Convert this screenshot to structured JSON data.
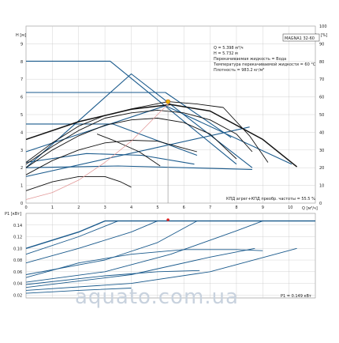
{
  "chart_data": [
    {
      "type": "line",
      "name": "pump-head-chart",
      "xlabel": "Q [м³/ч]",
      "ylabel_left": "H [м]",
      "ylabel_right": "eta [%]",
      "xlim": [
        0,
        11
      ],
      "ylim": [
        0,
        10
      ],
      "ylim_right": [
        0,
        100
      ],
      "x_ticks": [
        "0",
        "1",
        "2",
        "3",
        "4",
        "5",
        "6",
        "7",
        "8",
        "9",
        "10"
      ],
      "y_ticks": [
        "0",
        "1",
        "2",
        "3",
        "4",
        "5",
        "6",
        "7",
        "8",
        "9"
      ],
      "y_ticks_right": [
        "0",
        "10",
        "20",
        "30",
        "40",
        "50",
        "60",
        "70",
        "80",
        "90",
        "100"
      ],
      "grid": true,
      "model": "MAGNA1 32-60",
      "info_lines": [
        "Q = 5.398 м³/ч",
        "H = 5.732 м",
        "Перекачиваемая жидкость = Вода",
        "Температура перекачиваемой жидкости = 60 °C",
        "Плотность = 983.2 кг/м³"
      ],
      "efficiency_note": "КПД агрег+КПД преобр. частоты = 55.5 %",
      "operating_point": {
        "x": 5.398,
        "y": 5.732
      },
      "colors": {
        "curve": "#1a5a8c",
        "duty": "#111111",
        "efficiency": "#e39a9a",
        "point": "#e8b400",
        "grid": "#c8c8c8"
      },
      "series": [
        {
          "role": "constant-pressure",
          "values": [
            [
              0,
              8.02
            ],
            [
              3.2,
              8.02
            ],
            [
              8.0,
              2.2
            ]
          ]
        },
        {
          "role": "proportional-pressure",
          "values": [
            [
              0,
              6.25
            ],
            [
              5.3,
              6.25
            ],
            [
              7.8,
              3.7
            ]
          ]
        },
        {
          "role": "proportional-pressure",
          "values": [
            [
              0,
              4.47
            ],
            [
              3.3,
              4.47
            ],
            [
              6.5,
              2.7
            ]
          ]
        },
        {
          "role": "control-line",
          "values": [
            [
              0,
              2.0
            ],
            [
              4.0,
              7.3
            ],
            [
              8.6,
              2.0
            ]
          ]
        },
        {
          "role": "control-line",
          "values": [
            [
              0,
              2.9
            ],
            [
              5.3,
              5.5
            ],
            [
              10.1,
              2.2
            ]
          ]
        },
        {
          "role": "control-line",
          "values": [
            [
              0,
              1.5
            ],
            [
              8.5,
              4.3
            ]
          ]
        },
        {
          "role": "bottom-line",
          "values": [
            [
              0,
              2.3
            ],
            [
              2.3,
              2.8
            ],
            [
              4.4,
              2.7
            ],
            [
              6.4,
              2.2
            ]
          ]
        },
        {
          "role": "bottom-line",
          "values": [
            [
              0,
              2.0
            ],
            [
              3.5,
              2.1
            ],
            [
              8.6,
              1.9
            ]
          ]
        },
        {
          "role": "max-curve",
          "values": [
            [
              0,
              3.6
            ],
            [
              2,
              4.6
            ],
            [
              4,
              5.3
            ],
            [
              5.5,
              5.57
            ],
            [
              7,
              5.2
            ],
            [
              9,
              3.6
            ],
            [
              10.3,
              2.05
            ]
          ]
        },
        {
          "role": "duty-curve",
          "values": [
            [
              0,
              2.3
            ],
            [
              1,
              3.4
            ],
            [
              2,
              4.35
            ],
            [
              3,
              4.95
            ],
            [
              4,
              5.32
            ],
            [
              5.4,
              5.73
            ],
            [
              6.5,
              5.6
            ],
            [
              7.5,
              5.4
            ],
            [
              8.5,
              3.8
            ],
            [
              9.2,
              2.3
            ]
          ]
        },
        {
          "role": "duty-curve",
          "values": [
            [
              0,
              2.2
            ],
            [
              1,
              3.2
            ],
            [
              2,
              4.1
            ],
            [
              3,
              4.8
            ],
            [
              4,
              5.1
            ],
            [
              5,
              5.25
            ],
            [
              6,
              5.1
            ],
            [
              7,
              4.7
            ],
            [
              8,
              3.9
            ],
            [
              8.6,
              2.9
            ]
          ]
        },
        {
          "role": "duty-curve",
          "values": [
            [
              0,
              2.0
            ],
            [
              1,
              3.0
            ],
            [
              2,
              3.8
            ],
            [
              3,
              4.4
            ],
            [
              4,
              4.7
            ],
            [
              5,
              4.8
            ],
            [
              6,
              4.55
            ],
            [
              7,
              3.9
            ],
            [
              8,
              2.5
            ]
          ]
        },
        {
          "role": "duty-curve",
          "values": [
            [
              0,
              1.6
            ],
            [
              1,
              2.4
            ],
            [
              2,
              3.0
            ],
            [
              3,
              3.4
            ],
            [
              4,
              3.55
            ],
            [
              5,
              3.5
            ],
            [
              6,
              3.1
            ],
            [
              6.5,
              2.9
            ]
          ]
        },
        {
          "role": "duty-curve",
          "values": [
            [
              0,
              0.7
            ],
            [
              1,
              1.2
            ],
            [
              2,
              1.5
            ],
            [
              3,
              1.5
            ],
            [
              3.6,
              1.2
            ],
            [
              4.0,
              0.9
            ]
          ]
        },
        {
          "role": "duty-curve",
          "values": [
            [
              2.7,
              3.9
            ],
            [
              3.4,
              3.5
            ],
            [
              4.3,
              2.9
            ],
            [
              5.1,
              2.1
            ]
          ]
        },
        {
          "role": "efficiency",
          "values": [
            [
              0,
              0.2
            ],
            [
              1,
              0.6
            ],
            [
              2,
              1.3
            ],
            [
              3,
              2.3
            ],
            [
              4,
              3.5
            ],
            [
              5,
              5.0
            ],
            [
              5.4,
              5.6
            ]
          ]
        }
      ]
    },
    {
      "type": "line",
      "name": "pump-power-chart",
      "xlabel": "",
      "ylabel": "P1 [кВт]",
      "xlim": [
        0,
        11
      ],
      "ylim": [
        0.015,
        0.16
      ],
      "y_ticks": [
        "0.02",
        "0.04",
        "0.06",
        "0.08",
        "0.10",
        "0.12",
        "0.14"
      ],
      "power_note": "P1 = 0.149 кВт",
      "operating_point": {
        "x": 5.398,
        "y": 0.149
      },
      "series": [
        {
          "role": "max-power",
          "values": [
            [
              0,
              0.1
            ],
            [
              2,
              0.128
            ],
            [
              3,
              0.147
            ],
            [
              11,
              0.147
            ]
          ]
        },
        {
          "role": "power",
          "values": [
            [
              0,
              0.09
            ],
            [
              2,
              0.12
            ],
            [
              3.5,
              0.147
            ],
            [
              11,
              0.147
            ]
          ]
        },
        {
          "role": "power",
          "values": [
            [
              0,
              0.075
            ],
            [
              2,
              0.1
            ],
            [
              4,
              0.128
            ],
            [
              5,
              0.147
            ]
          ]
        },
        {
          "role": "power",
          "values": [
            [
              0,
              0.055
            ],
            [
              3,
              0.08
            ],
            [
              5,
              0.11
            ],
            [
              6.5,
              0.147
            ]
          ]
        },
        {
          "role": "power",
          "values": [
            [
              0,
              0.042
            ],
            [
              3,
              0.06
            ],
            [
              5.5,
              0.09
            ],
            [
              8,
              0.13
            ],
            [
              9,
              0.147
            ]
          ]
        },
        {
          "role": "power",
          "values": [
            [
              0,
              0.033
            ],
            [
              4,
              0.055
            ],
            [
              7,
              0.085
            ],
            [
              8.7,
              0.1
            ]
          ]
        },
        {
          "role": "power",
          "values": [
            [
              0,
              0.028
            ],
            [
              4,
              0.04
            ],
            [
              7,
              0.06
            ],
            [
              10.3,
              0.1
            ]
          ]
        },
        {
          "role": "power",
          "values": [
            [
              0,
              0.05
            ],
            [
              2,
              0.075
            ],
            [
              4,
              0.09
            ],
            [
              6,
              0.098
            ],
            [
              8,
              0.098
            ],
            [
              9,
              0.096
            ]
          ]
        },
        {
          "role": "power",
          "values": [
            [
              0,
              0.038
            ],
            [
              3,
              0.053
            ],
            [
              5,
              0.06
            ],
            [
              6.6,
              0.062
            ]
          ]
        },
        {
          "role": "power",
          "values": [
            [
              0,
              0.023
            ],
            [
              2,
              0.028
            ],
            [
              4,
              0.032
            ]
          ]
        }
      ]
    }
  ],
  "watermark": "aquato.com.ua"
}
